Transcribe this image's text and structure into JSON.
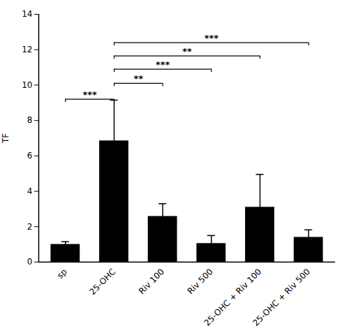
{
  "chart_data": {
    "type": "bar",
    "categories": [
      "sp",
      "25-OHC",
      "Riv 100",
      "Riv 500",
      "25-OHC + Riv 100",
      "25-OHC + Riv 500"
    ],
    "values": [
      1.0,
      6.85,
      2.58,
      1.05,
      3.1,
      1.4
    ],
    "errors": [
      0.15,
      2.3,
      0.72,
      0.45,
      1.85,
      0.42
    ],
    "color": "#000000",
    "ylabel": "TF",
    "ylim": [
      0,
      14
    ],
    "yticks": [
      0,
      2,
      4,
      6,
      8,
      10,
      12,
      14
    ],
    "annotations": [
      {
        "from": "sp",
        "to": "25-OHC",
        "y": 9.2,
        "label_y": 9.3,
        "label": "***"
      },
      {
        "from": "25-OHC",
        "to": "Riv 100",
        "y": 10.1,
        "label_y": 10.2,
        "label": "**"
      },
      {
        "from": "25-OHC",
        "to": "Riv 500",
        "y": 10.9,
        "label_y": 11.0,
        "label": "***"
      },
      {
        "from": "25-OHC",
        "to": "25-OHC + Riv 100",
        "y": 11.65,
        "label_y": 11.75,
        "label": "**"
      },
      {
        "from": "25-OHC",
        "to": "25-OHC + Riv 500",
        "y": 12.4,
        "label_y": 12.5,
        "label": "***"
      }
    ]
  }
}
